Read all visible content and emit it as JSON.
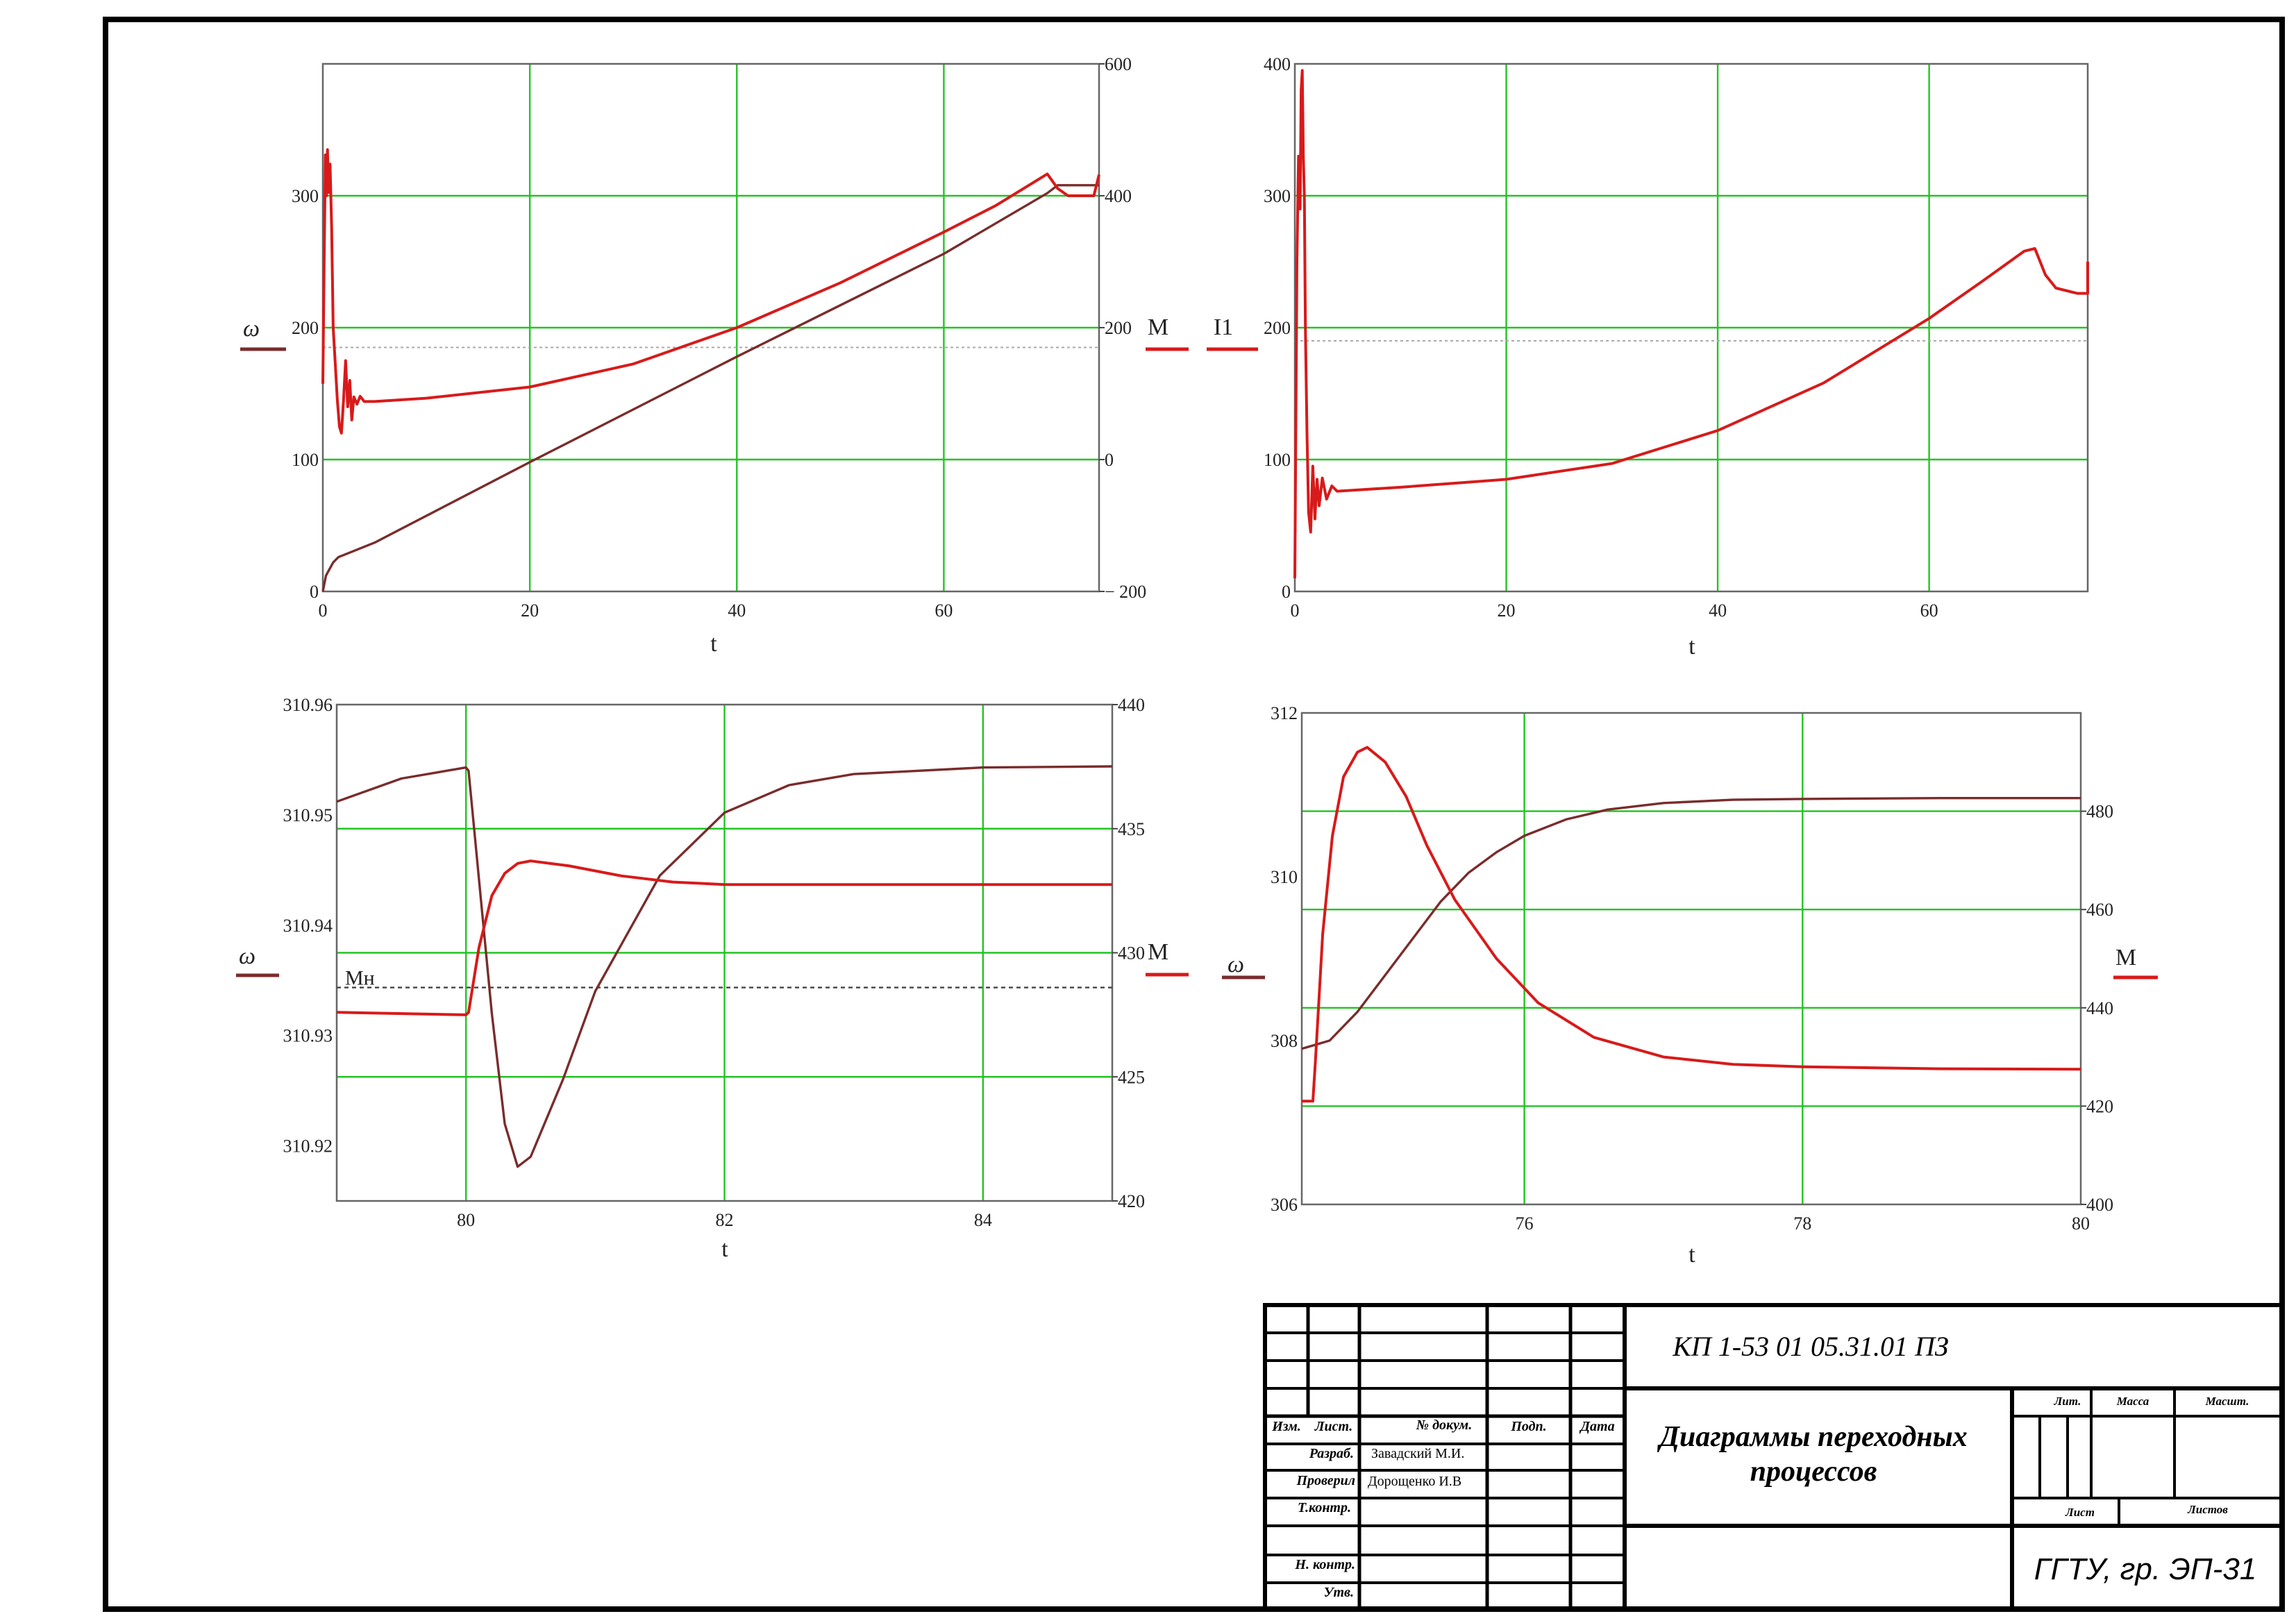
{
  "chart_data": [
    {
      "type": "line",
      "x": {
        "label": "t",
        "lim": [
          0,
          75
        ],
        "ticks": [
          0,
          20,
          40,
          60
        ]
      },
      "y_left": {
        "label": "ω",
        "lim": [
          0,
          400
        ],
        "ticks": [
          0,
          100,
          200,
          300
        ]
      },
      "y_right": {
        "label": "M",
        "lim": [
          -200,
          600
        ],
        "ticks": [
          -200,
          0,
          200,
          400,
          600
        ],
        "tick_labels": [
          "− 200",
          "0",
          "200",
          "400",
          "600"
        ]
      },
      "grid": true,
      "series": [
        {
          "color": "#7a2c2c",
          "axis": "left",
          "points": [
            [
              0,
              0
            ],
            [
              0.3,
              12
            ],
            [
              1,
              22
            ],
            [
              1.5,
              26
            ],
            [
              5,
              37
            ],
            [
              20,
              98
            ],
            [
              40,
              178
            ],
            [
              60,
              256
            ],
            [
              70,
              302
            ],
            [
              71,
              308
            ],
            [
              75,
              308
            ]
          ]
        },
        {
          "color": "#d81a1a",
          "axis": "right",
          "points": [
            [
              0,
              115
            ],
            [
              0.15,
              330
            ],
            [
              0.25,
              462
            ],
            [
              0.35,
              400
            ],
            [
              0.45,
              470
            ],
            [
              0.55,
              405
            ],
            [
              0.7,
              448
            ],
            [
              0.85,
              350
            ],
            [
              1,
              200
            ],
            [
              1.2,
              145
            ],
            [
              1.4,
              90
            ],
            [
              1.6,
              50
            ],
            [
              1.8,
              40
            ],
            [
              2,
              90
            ],
            [
              2.2,
              150
            ],
            [
              2.4,
              80
            ],
            [
              2.6,
              120
            ],
            [
              2.8,
              60
            ],
            [
              3,
              95
            ],
            [
              3.3,
              84
            ],
            [
              3.6,
              96
            ],
            [
              4,
              88
            ],
            [
              5,
              88
            ],
            [
              10,
              93
            ],
            [
              20,
              110
            ],
            [
              30,
              145
            ],
            [
              40,
              200
            ],
            [
              50,
              268
            ],
            [
              60,
              345
            ],
            [
              65,
              385
            ],
            [
              70,
              433
            ],
            [
              71,
              411
            ],
            [
              72,
              400
            ],
            [
              74.5,
              400
            ],
            [
              75,
              432
            ]
          ]
        }
      ],
      "annotations": [
        {
          "axis": "left",
          "y": 185,
          "style": "dashed"
        }
      ]
    },
    {
      "type": "line",
      "x": {
        "label": "t",
        "lim": [
          0,
          75
        ],
        "ticks": [
          0,
          20,
          40,
          60
        ]
      },
      "y_left": {
        "label": "I1",
        "lim": [
          0,
          400
        ],
        "ticks": [
          0,
          100,
          200,
          300,
          400
        ]
      },
      "grid": true,
      "series": [
        {
          "color": "#d81a1a",
          "axis": "left",
          "points": [
            [
              0,
              10
            ],
            [
              0.2,
              250
            ],
            [
              0.35,
              330
            ],
            [
              0.5,
              290
            ],
            [
              0.6,
              380
            ],
            [
              0.7,
              395
            ],
            [
              0.8,
              330
            ],
            [
              0.9,
              300
            ],
            [
              1,
              200
            ],
            [
              1.15,
              120
            ],
            [
              1.3,
              60
            ],
            [
              1.5,
              45
            ],
            [
              1.7,
              95
            ],
            [
              1.9,
              55
            ],
            [
              2.1,
              85
            ],
            [
              2.3,
              65
            ],
            [
              2.6,
              86
            ],
            [
              3,
              70
            ],
            [
              3.5,
              80
            ],
            [
              4,
              76
            ],
            [
              10,
              79
            ],
            [
              20,
              85
            ],
            [
              30,
              97
            ],
            [
              40,
              122
            ],
            [
              50,
              158
            ],
            [
              60,
              207
            ],
            [
              65,
              235
            ],
            [
              69,
              258
            ],
            [
              70,
              260
            ],
            [
              71,
              240
            ],
            [
              72,
              230
            ],
            [
              74,
              226
            ],
            [
              75,
              226
            ],
            [
              75,
              250
            ]
          ]
        }
      ],
      "annotations": [
        {
          "axis": "left",
          "y": 190,
          "style": "dashed"
        }
      ]
    },
    {
      "type": "line",
      "x": {
        "label": "t",
        "lim": [
          79,
          85
        ],
        "ticks": [
          80,
          82,
          84
        ]
      },
      "y_left": {
        "label": "ω",
        "lim": [
          310.915,
          310.96
        ],
        "ticks": [
          310.92,
          310.93,
          310.94,
          310.95,
          310.96
        ]
      },
      "y_right": {
        "label": "M",
        "lim": [
          420,
          440
        ],
        "ticks": [
          420,
          425,
          430,
          435,
          440
        ]
      },
      "grid": true,
      "series": [
        {
          "color": "#7a2c2c",
          "axis": "left",
          "points": [
            [
              79,
              310.9512
            ],
            [
              79.5,
              310.9533
            ],
            [
              80,
              310.9543
            ],
            [
              80.02,
              310.954
            ],
            [
              80.2,
              310.932
            ],
            [
              80.3,
              310.922
            ],
            [
              80.4,
              310.9181
            ],
            [
              80.5,
              310.919
            ],
            [
              80.75,
              310.926
            ],
            [
              81,
              310.934
            ],
            [
              81.5,
              310.9445
            ],
            [
              82,
              310.9502
            ],
            [
              82.5,
              310.9527
            ],
            [
              83,
              310.9537
            ],
            [
              84,
              310.9543
            ],
            [
              85,
              310.9544
            ]
          ]
        },
        {
          "color": "#d81a1a",
          "axis": "right",
          "points": [
            [
              79,
              427.6
            ],
            [
              80,
              427.5
            ],
            [
              80.02,
              427.6
            ],
            [
              80.1,
              430.2
            ],
            [
              80.2,
              432.3
            ],
            [
              80.3,
              433.2
            ],
            [
              80.4,
              433.6
            ],
            [
              80.5,
              433.7
            ],
            [
              80.8,
              433.5
            ],
            [
              81.2,
              433.1
            ],
            [
              81.6,
              432.85
            ],
            [
              82,
              432.75
            ],
            [
              83,
              432.75
            ],
            [
              85,
              432.75
            ]
          ]
        }
      ],
      "annotations": [
        {
          "label": "Mн",
          "axis": "right",
          "y": 428.6,
          "style": "dashed"
        }
      ]
    },
    {
      "type": "line",
      "x": {
        "label": "t",
        "lim": [
          74.4,
          80
        ],
        "ticks": [
          76,
          78,
          80
        ]
      },
      "y_left": {
        "label": "ω",
        "lim": [
          306,
          312
        ],
        "ticks": [
          306,
          308,
          310,
          312
        ]
      },
      "y_right": {
        "label": "M",
        "lim": [
          400,
          500
        ],
        "ticks": [
          400,
          420,
          440,
          460,
          480
        ]
      },
      "grid": true,
      "series": [
        {
          "color": "#7a2c2c",
          "axis": "left",
          "points": [
            [
              74.4,
              307.9
            ],
            [
              74.6,
              308
            ],
            [
              74.8,
              308.35
            ],
            [
              75,
              308.8
            ],
            [
              75.2,
              309.25
            ],
            [
              75.4,
              309.7
            ],
            [
              75.6,
              310.05
            ],
            [
              75.8,
              310.3
            ],
            [
              76,
              310.5
            ],
            [
              76.3,
              310.7
            ],
            [
              76.6,
              310.82
            ],
            [
              77,
              310.9
            ],
            [
              77.5,
              310.94
            ],
            [
              78,
              310.95
            ],
            [
              79,
              310.96
            ],
            [
              80,
              310.96
            ]
          ]
        },
        {
          "color": "#d81a1a",
          "axis": "right",
          "points": [
            [
              74.4,
              421
            ],
            [
              74.48,
              421
            ],
            [
              74.5,
              430
            ],
            [
              74.55,
              455
            ],
            [
              74.62,
              475
            ],
            [
              74.7,
              487
            ],
            [
              74.8,
              492
            ],
            [
              74.87,
              493
            ],
            [
              75,
              490
            ],
            [
              75.15,
              483
            ],
            [
              75.3,
              473
            ],
            [
              75.5,
              462
            ],
            [
              75.8,
              450
            ],
            [
              76.1,
              441
            ],
            [
              76.5,
              434
            ],
            [
              77,
              430
            ],
            [
              77.5,
              428.5
            ],
            [
              78,
              428
            ],
            [
              79,
              427.6
            ],
            [
              80,
              427.5
            ]
          ]
        }
      ]
    }
  ],
  "title_block": {
    "designation": "КП 1-53 01 05.31.01 ПЗ",
    "doc_title_line1": "Диаграммы переходных",
    "doc_title_line2": "процессов",
    "organization": "ГГТУ, гр. ЭП-31",
    "col_izm": "Изм.",
    "col_list": "Лист.",
    "col_doc": "№ докум.",
    "col_sign": "Подп.",
    "col_date": "Дата",
    "razrab": "Разраб.",
    "razrab_name": "Завадский М.И.",
    "proveril": "Проверил",
    "proveril_name": "Дорощенко И.В",
    "tkontr": "Т.контр.",
    "nkontr": "Н. контр.",
    "utv": "Утв.",
    "lit": "Лит.",
    "massa": "Масса",
    "masshtab": "Масшт.",
    "list": "Лист",
    "listov": "Листов"
  }
}
